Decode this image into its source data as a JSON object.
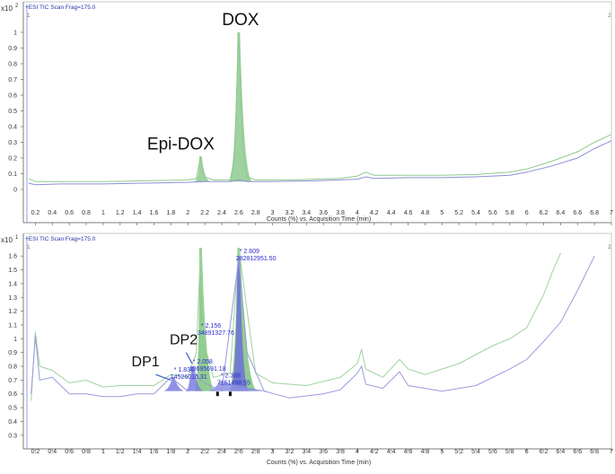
{
  "chart_data": [
    {
      "type": "line",
      "header": "+ESI TIC Scan Frag=175.0",
      "y_scale_label": "x10",
      "y_scale_exp": "2",
      "corner_left": "1",
      "corner_right": "2",
      "xlabel": "Counts (%) vs. Acquisition Time (min)",
      "xlim": [
        0.1,
        7.0
      ],
      "ylim": [
        -0.08,
        1.08
      ],
      "x_ticks": [
        "0.2",
        "0.4",
        "0.6",
        "0.8",
        "1",
        "1.2",
        "1.4",
        "1.6",
        "1.8",
        "2",
        "2.2",
        "2.4",
        "2.6",
        "2.8",
        "3",
        "3.2",
        "3.4",
        "3.6",
        "3.8",
        "4",
        "4.2",
        "4.4",
        "4.6",
        "4.8",
        "5",
        "5.2",
        "5.4",
        "5.6",
        "5.8",
        "6",
        "6.2",
        "6.4",
        "6.6",
        "6.8",
        "7"
      ],
      "y_ticks": [
        "0",
        "0.1",
        "0.2",
        "0.3",
        "0.4",
        "0.5",
        "0.6",
        "0.7",
        "0.8",
        "0.9",
        "1"
      ],
      "grid": false,
      "series": [
        {
          "color": "#8fc98f",
          "x": [
            0.12,
            0.2,
            0.5,
            1.0,
            1.5,
            2.0,
            2.1,
            2.15,
            2.2,
            2.3,
            2.5,
            2.55,
            2.6,
            2.65,
            2.7,
            2.8,
            3.2,
            3.8,
            4.0,
            4.1,
            4.2,
            4.6,
            5.0,
            5.4,
            5.8,
            6.0,
            6.3,
            6.6,
            6.8,
            7.0
          ],
          "y": [
            0.07,
            0.05,
            0.05,
            0.05,
            0.055,
            0.06,
            0.07,
            0.21,
            0.08,
            0.06,
            0.06,
            0.2,
            1.0,
            0.25,
            0.08,
            0.06,
            0.06,
            0.07,
            0.085,
            0.11,
            0.09,
            0.09,
            0.09,
            0.095,
            0.11,
            0.13,
            0.18,
            0.24,
            0.3,
            0.35
          ]
        },
        {
          "color": "#8b8fd6",
          "x": [
            0.12,
            0.2,
            0.5,
            1.0,
            1.5,
            2.0,
            2.2,
            2.5,
            2.6,
            2.7,
            3.0,
            3.5,
            4.0,
            4.1,
            4.2,
            4.6,
            5.0,
            5.4,
            5.8,
            6.0,
            6.3,
            6.6,
            6.8,
            7.0
          ],
          "y": [
            0.04,
            0.03,
            0.035,
            0.035,
            0.04,
            0.045,
            0.05,
            0.05,
            0.06,
            0.05,
            0.05,
            0.055,
            0.065,
            0.08,
            0.07,
            0.075,
            0.075,
            0.08,
            0.09,
            0.11,
            0.15,
            0.2,
            0.26,
            0.31
          ]
        }
      ],
      "annotations": [
        {
          "text": "DOX",
          "x": 2.6,
          "y": 1.0
        },
        {
          "text": "Epi-DOX",
          "x": 2.15,
          "y": 0.21
        }
      ],
      "filled_peaks": [
        {
          "series": 0,
          "x0": 2.08,
          "xp": 2.15,
          "x1": 2.26,
          "y": 0.21
        },
        {
          "series": 0,
          "x0": 2.48,
          "xp": 2.6,
          "x1": 2.76,
          "y": 1.0
        }
      ]
    },
    {
      "type": "line",
      "header": "+ESI TIC Scan Frag=175.0",
      "y_scale_label": "x10",
      "y_scale_exp": "1",
      "corner_left": "1",
      "corner_right": "2",
      "xlabel": "Counts (%) vs. Acquisition Time (min)",
      "xlim": [
        0.1,
        7.0
      ],
      "ylim": [
        0.24,
        1.66
      ],
      "x_ticks": [
        "0.2",
        "0.4",
        "0.6",
        "0.8",
        "1",
        "1.2",
        "1.4",
        "1.6",
        "1.8",
        "2",
        "2.2",
        "2.4",
        "2.6",
        "2.8",
        "3",
        "3.2",
        "3.4",
        "3.6",
        "3.8",
        "4",
        "4.2",
        "4.4",
        "4.6",
        "4.8",
        "5",
        "5.2",
        "5.4",
        "5.6",
        "5.8",
        "6",
        "6.2",
        "6.4",
        "6.6",
        "6.8",
        "7"
      ],
      "y_ticks": [
        "0.3",
        "0.4",
        "0.5",
        "0.6",
        "0.7",
        "0.8",
        "0.9",
        "1",
        "1.1",
        "1.2",
        "1.3",
        "1.4",
        "1.5",
        "1.6"
      ],
      "grid": false,
      "series": [
        {
          "color": "#9ed39e",
          "x": [
            0.15,
            0.2,
            0.25,
            0.4,
            0.6,
            0.8,
            1.0,
            1.2,
            1.4,
            1.6,
            1.8,
            2.0,
            2.1,
            2.15,
            2.2,
            2.3,
            2.5,
            2.6,
            2.7,
            2.8,
            3.0,
            3.4,
            3.8,
            4.0,
            4.05,
            4.1,
            4.3,
            4.5,
            4.6,
            4.8,
            5.2,
            5.6,
            5.8,
            6.0,
            6.2,
            6.3,
            6.4
          ],
          "y": [
            0.55,
            1.05,
            0.8,
            0.77,
            0.68,
            0.7,
            0.65,
            0.66,
            0.66,
            0.66,
            0.74,
            0.72,
            0.9,
            1.66,
            0.95,
            0.72,
            0.75,
            1.66,
            1.2,
            0.75,
            0.68,
            0.66,
            0.72,
            0.82,
            0.92,
            0.78,
            0.72,
            0.85,
            0.78,
            0.74,
            0.82,
            0.95,
            1.0,
            1.08,
            1.32,
            1.48,
            1.62
          ]
        },
        {
          "color": "#9a9ae0",
          "x": [
            0.15,
            0.2,
            0.25,
            0.4,
            0.6,
            0.8,
            1.0,
            1.2,
            1.4,
            1.6,
            1.8,
            2.0,
            2.05,
            2.15,
            2.2,
            2.4,
            2.6,
            2.7,
            2.9,
            3.2,
            3.6,
            3.8,
            4.0,
            4.05,
            4.1,
            4.3,
            4.5,
            4.6,
            5.0,
            5.4,
            5.8,
            6.0,
            6.2,
            6.4,
            6.6,
            6.8
          ],
          "y": [
            0.6,
            1.02,
            0.7,
            0.72,
            0.6,
            0.6,
            0.58,
            0.58,
            0.6,
            0.6,
            0.72,
            0.62,
            0.78,
            0.7,
            0.68,
            0.62,
            1.58,
            0.9,
            0.62,
            0.57,
            0.6,
            0.63,
            0.75,
            0.8,
            0.67,
            0.64,
            0.76,
            0.66,
            0.62,
            0.66,
            0.78,
            0.85,
            0.98,
            1.12,
            1.35,
            1.6
          ]
        }
      ],
      "peak_labels": [
        {
          "rt": "2.156",
          "area": "34891327.76",
          "x": 2.156,
          "y": 1.08
        },
        {
          "rt": "2.609",
          "area": "282812951.50",
          "x": 2.609,
          "y": 1.62
        },
        {
          "rt": "2.058",
          "area": "13695691.18",
          "x": 2.058,
          "y": 0.82
        },
        {
          "rt": "1.836",
          "area": "14526016.31",
          "x": 1.836,
          "y": 0.76
        },
        {
          "rt": "2.388",
          "area": "7151498.55",
          "x": 2.388,
          "y": 0.72
        }
      ],
      "annotations": [
        {
          "text": "DP2",
          "x": 1.95,
          "y": 0.96
        },
        {
          "text": "DP1",
          "x": 1.5,
          "y": 0.8
        }
      ],
      "filled_peaks": [
        {
          "color": "#7ec37e",
          "x0": 2.08,
          "xp": 2.15,
          "x1": 2.32,
          "y": 1.66
        },
        {
          "color": "#7ec37e",
          "x0": 2.48,
          "xp": 2.6,
          "x1": 2.82,
          "y": 1.66
        },
        {
          "color": "#6d6fd8",
          "x0": 2.5,
          "xp": 2.6,
          "x1": 2.72,
          "y": 1.6
        },
        {
          "color": "#7a7ee0",
          "x0": 1.72,
          "xp": 1.83,
          "x1": 1.95,
          "y": 0.72
        },
        {
          "color": "#7a7ee0",
          "x0": 1.97,
          "xp": 2.06,
          "x1": 2.18,
          "y": 0.8
        },
        {
          "color": "#8a8ee4",
          "x0": 2.25,
          "xp": 2.39,
          "x1": 2.95,
          "y": 0.69
        }
      ],
      "integration_marks": [
        {
          "x": 2.35,
          "y": 0.6
        },
        {
          "x": 2.5,
          "y": 0.6
        }
      ]
    }
  ]
}
